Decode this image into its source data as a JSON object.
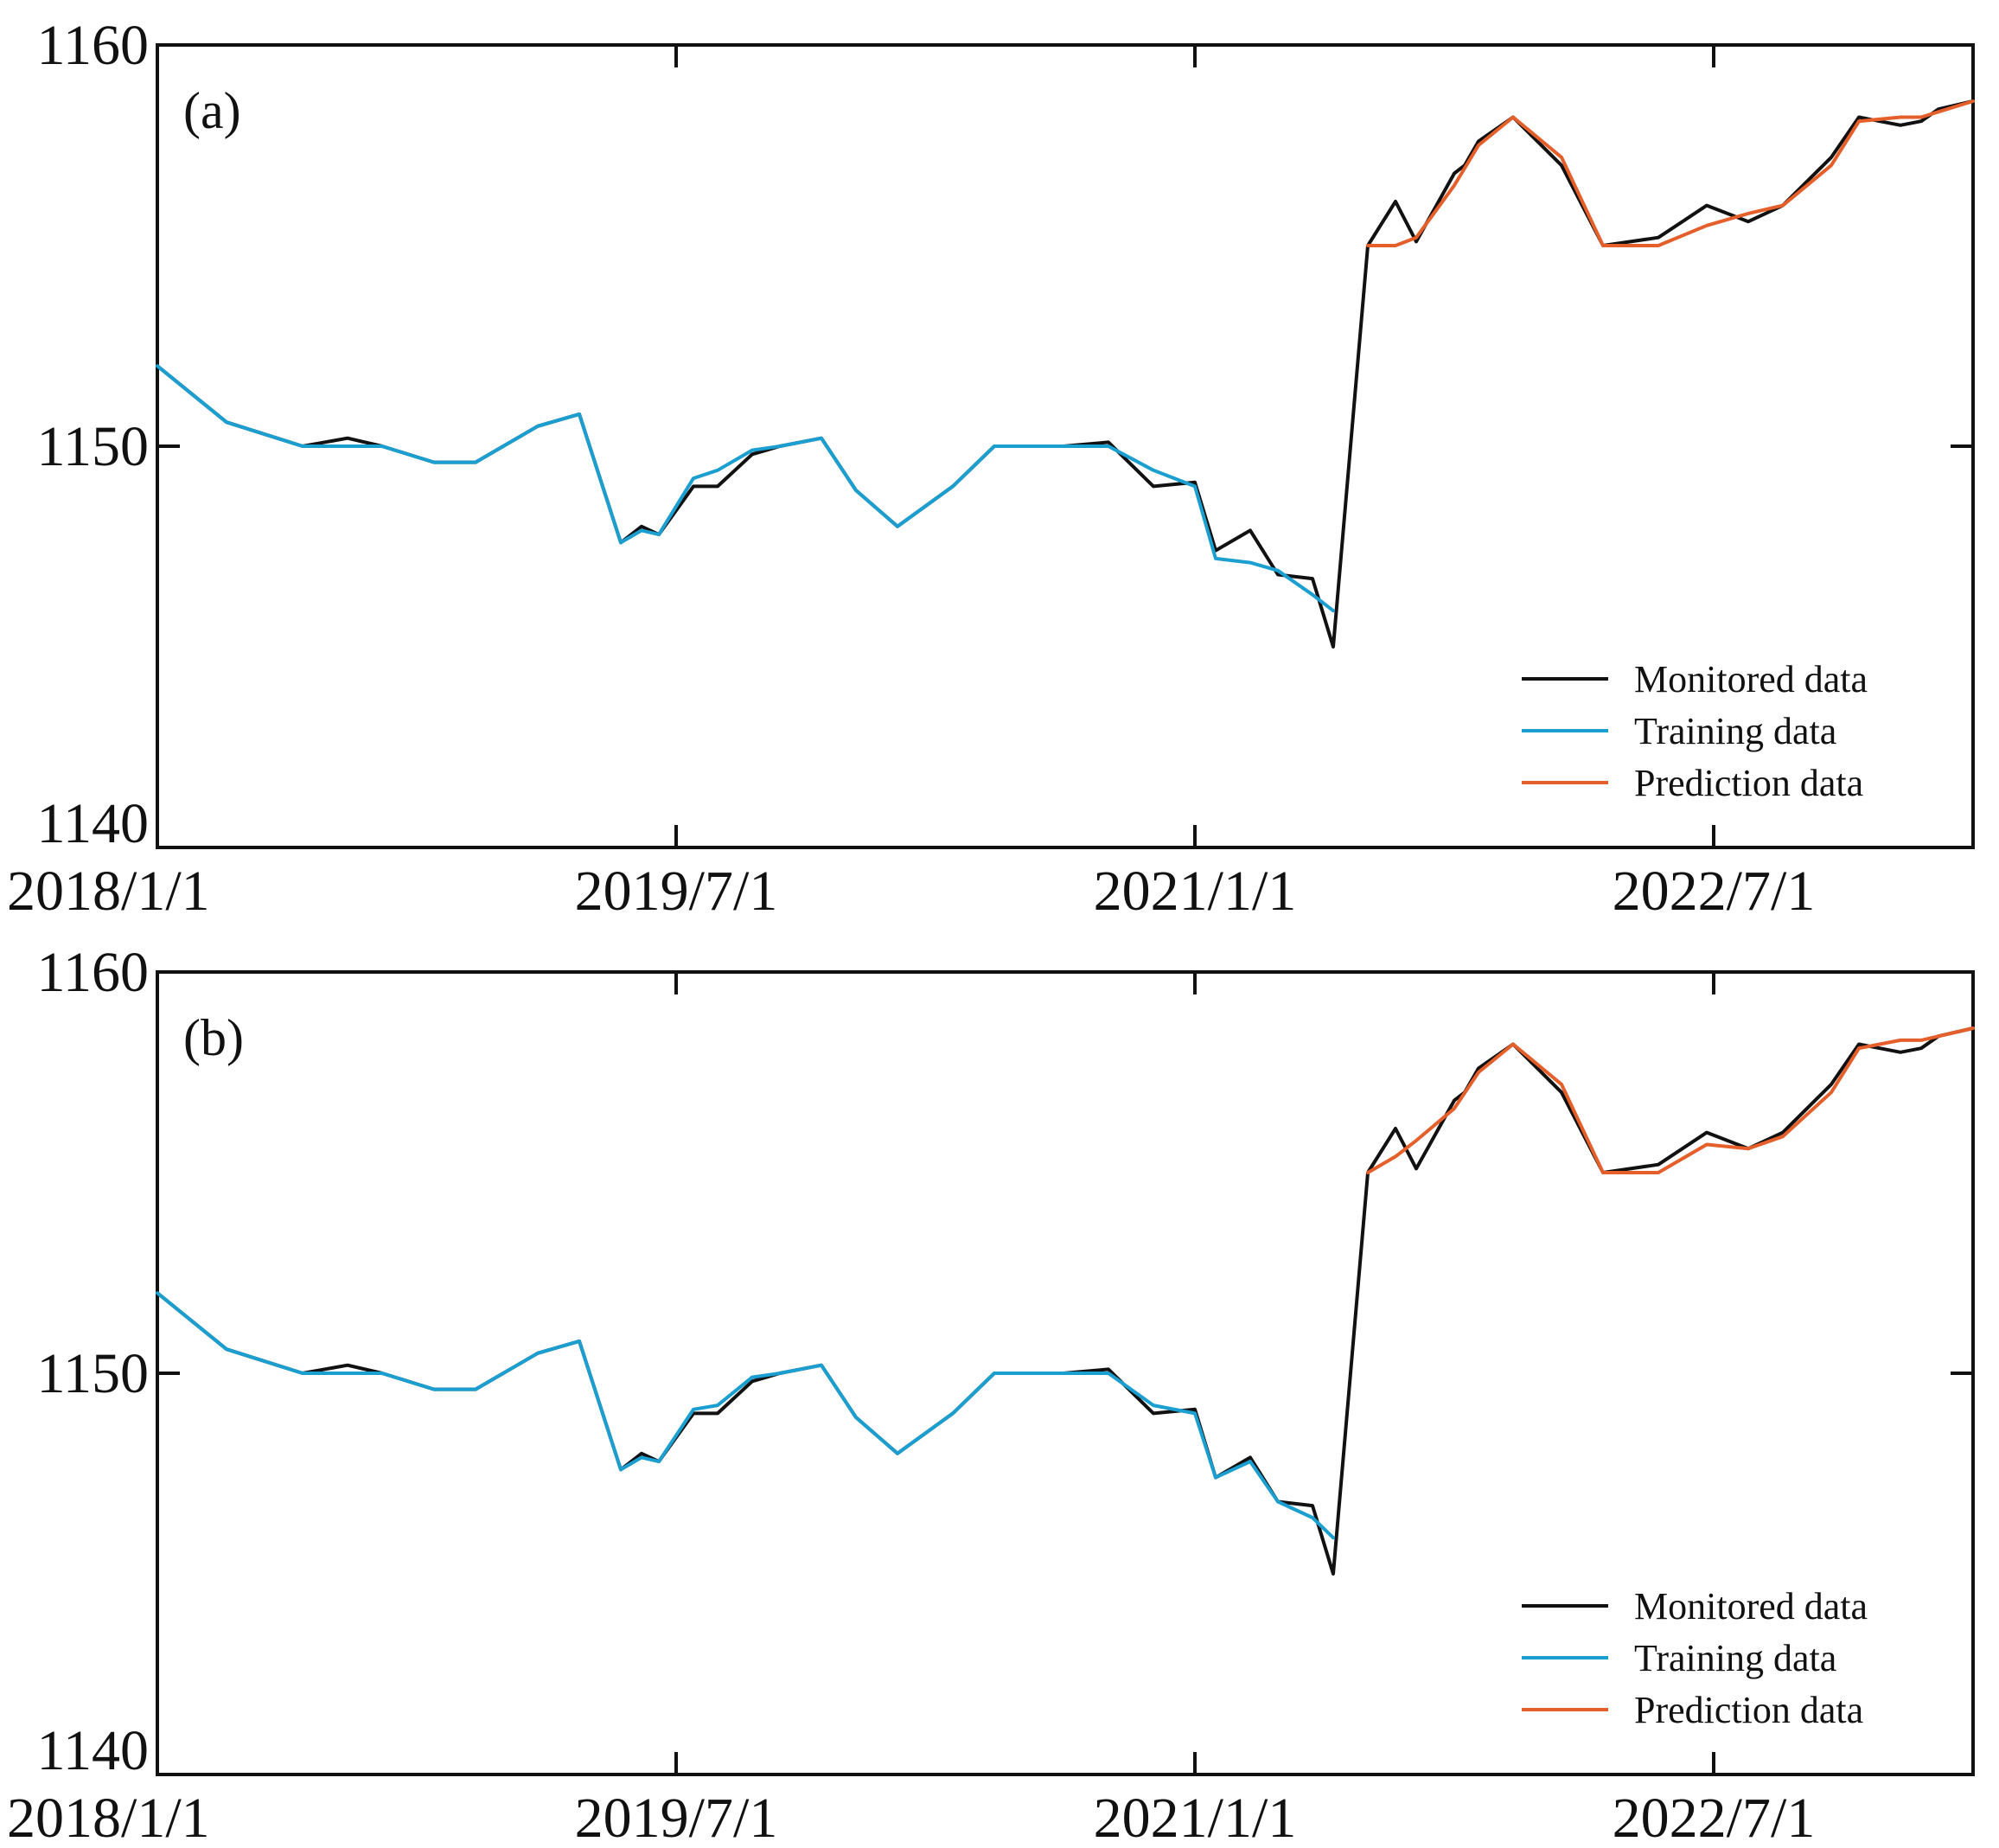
{
  "chart_data": [
    {
      "type": "line",
      "panel_label": "(a)",
      "ylim": [
        1140,
        1160
      ],
      "yticks": [
        1140,
        1150,
        1160
      ],
      "xlim": [
        0,
        5.25
      ],
      "x_unit": "years since 2018/1/1",
      "xticks": [
        {
          "value": 0,
          "label": "2018/1/1"
        },
        {
          "value": 1.5,
          "label": "2019/7/1"
        },
        {
          "value": 3.0,
          "label": "2021/1/1"
        },
        {
          "value": 4.5,
          "label": "2022/7/1"
        }
      ],
      "legend": {
        "position": "bottom-right",
        "entries": [
          "Monitored data",
          "Training data",
          "Prediction data"
        ]
      },
      "series": [
        {
          "name": "Monitored data",
          "color": "#111111",
          "x": [
            0,
            0.2,
            0.42,
            0.55,
            0.65,
            0.8,
            0.92,
            1.1,
            1.22,
            1.34,
            1.4,
            1.45,
            1.55,
            1.62,
            1.72,
            1.8,
            1.92,
            2.02,
            2.14,
            2.3,
            2.42,
            2.52,
            2.62,
            2.75,
            2.88,
            3.0,
            3.06,
            3.16,
            3.24,
            3.34,
            3.4,
            3.5,
            3.58,
            3.64,
            3.75,
            3.78,
            3.82,
            3.92,
            4.06,
            4.18,
            4.34,
            4.48,
            4.6,
            4.7,
            4.84,
            4.92,
            5.04,
            5.1,
            5.15,
            5.25
          ],
          "y": [
            1152,
            1150.6,
            1150,
            1150.2,
            1150,
            1149.6,
            1149.6,
            1150.5,
            1150.8,
            1147.6,
            1148,
            1147.8,
            1149,
            1149,
            1149.8,
            1150,
            1150.2,
            1148.9,
            1148,
            1149,
            1150,
            1150,
            1150,
            1150.1,
            1149,
            1149.1,
            1147.4,
            1147.9,
            1146.8,
            1146.7,
            1145,
            1155,
            1156.1,
            1155.1,
            1156.8,
            1157,
            1157.6,
            1158.2,
            1157,
            1155,
            1155.2,
            1156,
            1155.6,
            1156,
            1157.2,
            1158.2,
            1158,
            1158.1,
            1158.4,
            1158.6
          ]
        },
        {
          "name": "Training data",
          "color": "#1a9fd0",
          "x": [
            0,
            0.2,
            0.42,
            0.55,
            0.65,
            0.8,
            0.92,
            1.1,
            1.22,
            1.34,
            1.4,
            1.45,
            1.55,
            1.62,
            1.72,
            1.8,
            1.92,
            2.02,
            2.14,
            2.3,
            2.42,
            2.52,
            2.62,
            2.75,
            2.88,
            3.0,
            3.06,
            3.16,
            3.24,
            3.34,
            3.4
          ],
          "y": [
            1152,
            1150.6,
            1150,
            1150,
            1150,
            1149.6,
            1149.6,
            1150.5,
            1150.8,
            1147.6,
            1147.9,
            1147.8,
            1149.2,
            1149.4,
            1149.9,
            1150,
            1150.2,
            1148.9,
            1148,
            1149,
            1150,
            1150,
            1150,
            1150,
            1149.4,
            1149,
            1147.2,
            1147.1,
            1146.9,
            1146.3,
            1145.9
          ]
        },
        {
          "name": "Prediction data",
          "color": "#e55f2b",
          "x": [
            3.5,
            3.58,
            3.64,
            3.75,
            3.82,
            3.92,
            4.06,
            4.18,
            4.34,
            4.48,
            4.6,
            4.7,
            4.84,
            4.92,
            5.04,
            5.1,
            5.25
          ],
          "y": [
            1155,
            1155,
            1155.2,
            1156.5,
            1157.5,
            1158.2,
            1157.2,
            1155,
            1155,
            1155.5,
            1155.8,
            1156,
            1157,
            1158.1,
            1158.2,
            1158.2,
            1158.6
          ]
        }
      ]
    },
    {
      "type": "line",
      "panel_label": "(b)",
      "ylim": [
        1140,
        1160
      ],
      "yticks": [
        1140,
        1150,
        1160
      ],
      "xlim": [
        0,
        5.25
      ],
      "x_unit": "years since 2018/1/1",
      "xticks": [
        {
          "value": 0,
          "label": "2018/1/1"
        },
        {
          "value": 1.5,
          "label": "2019/7/1"
        },
        {
          "value": 3.0,
          "label": "2021/1/1"
        },
        {
          "value": 4.5,
          "label": "2022/7/1"
        }
      ],
      "legend": {
        "position": "bottom-right",
        "entries": [
          "Monitored data",
          "Training data",
          "Prediction data"
        ]
      },
      "series": [
        {
          "name": "Monitored data",
          "color": "#111111",
          "x": [
            0,
            0.2,
            0.42,
            0.55,
            0.65,
            0.8,
            0.92,
            1.1,
            1.22,
            1.34,
            1.4,
            1.45,
            1.55,
            1.62,
            1.72,
            1.8,
            1.92,
            2.02,
            2.14,
            2.3,
            2.42,
            2.52,
            2.62,
            2.75,
            2.88,
            3.0,
            3.06,
            3.16,
            3.24,
            3.34,
            3.4,
            3.5,
            3.58,
            3.64,
            3.75,
            3.78,
            3.82,
            3.92,
            4.06,
            4.18,
            4.34,
            4.48,
            4.6,
            4.7,
            4.84,
            4.92,
            5.04,
            5.1,
            5.15,
            5.25
          ],
          "y": [
            1152,
            1150.6,
            1150,
            1150.2,
            1150,
            1149.6,
            1149.6,
            1150.5,
            1150.8,
            1147.6,
            1148,
            1147.8,
            1149,
            1149,
            1149.8,
            1150,
            1150.2,
            1148.9,
            1148,
            1149,
            1150,
            1150,
            1150,
            1150.1,
            1149,
            1149.1,
            1147.4,
            1147.9,
            1146.8,
            1146.7,
            1145,
            1155,
            1156.1,
            1155.1,
            1156.8,
            1157,
            1157.6,
            1158.2,
            1157,
            1155,
            1155.2,
            1156,
            1155.6,
            1156,
            1157.2,
            1158.2,
            1158,
            1158.1,
            1158.4,
            1158.6
          ]
        },
        {
          "name": "Training data",
          "color": "#1a9fd0",
          "x": [
            0,
            0.2,
            0.42,
            0.55,
            0.65,
            0.8,
            0.92,
            1.1,
            1.22,
            1.34,
            1.4,
            1.45,
            1.55,
            1.62,
            1.72,
            1.8,
            1.92,
            2.02,
            2.14,
            2.3,
            2.42,
            2.52,
            2.62,
            2.75,
            2.88,
            3.0,
            3.06,
            3.16,
            3.24,
            3.34,
            3.4
          ],
          "y": [
            1152,
            1150.6,
            1150,
            1150,
            1150,
            1149.6,
            1149.6,
            1150.5,
            1150.8,
            1147.6,
            1147.9,
            1147.8,
            1149.1,
            1149.2,
            1149.9,
            1150,
            1150.2,
            1148.9,
            1148,
            1149,
            1150,
            1150,
            1150,
            1150,
            1149.2,
            1149,
            1147.4,
            1147.8,
            1146.8,
            1146.4,
            1145.9
          ]
        },
        {
          "name": "Prediction data",
          "color": "#e55f2b",
          "x": [
            3.5,
            3.58,
            3.64,
            3.75,
            3.82,
            3.92,
            4.06,
            4.18,
            4.34,
            4.48,
            4.6,
            4.7,
            4.84,
            4.92,
            5.04,
            5.1,
            5.25
          ],
          "y": [
            1155,
            1155.4,
            1155.8,
            1156.6,
            1157.5,
            1158.2,
            1157.2,
            1155,
            1155,
            1155.7,
            1155.6,
            1155.9,
            1157,
            1158.1,
            1158.3,
            1158.3,
            1158.6
          ]
        }
      ]
    }
  ]
}
